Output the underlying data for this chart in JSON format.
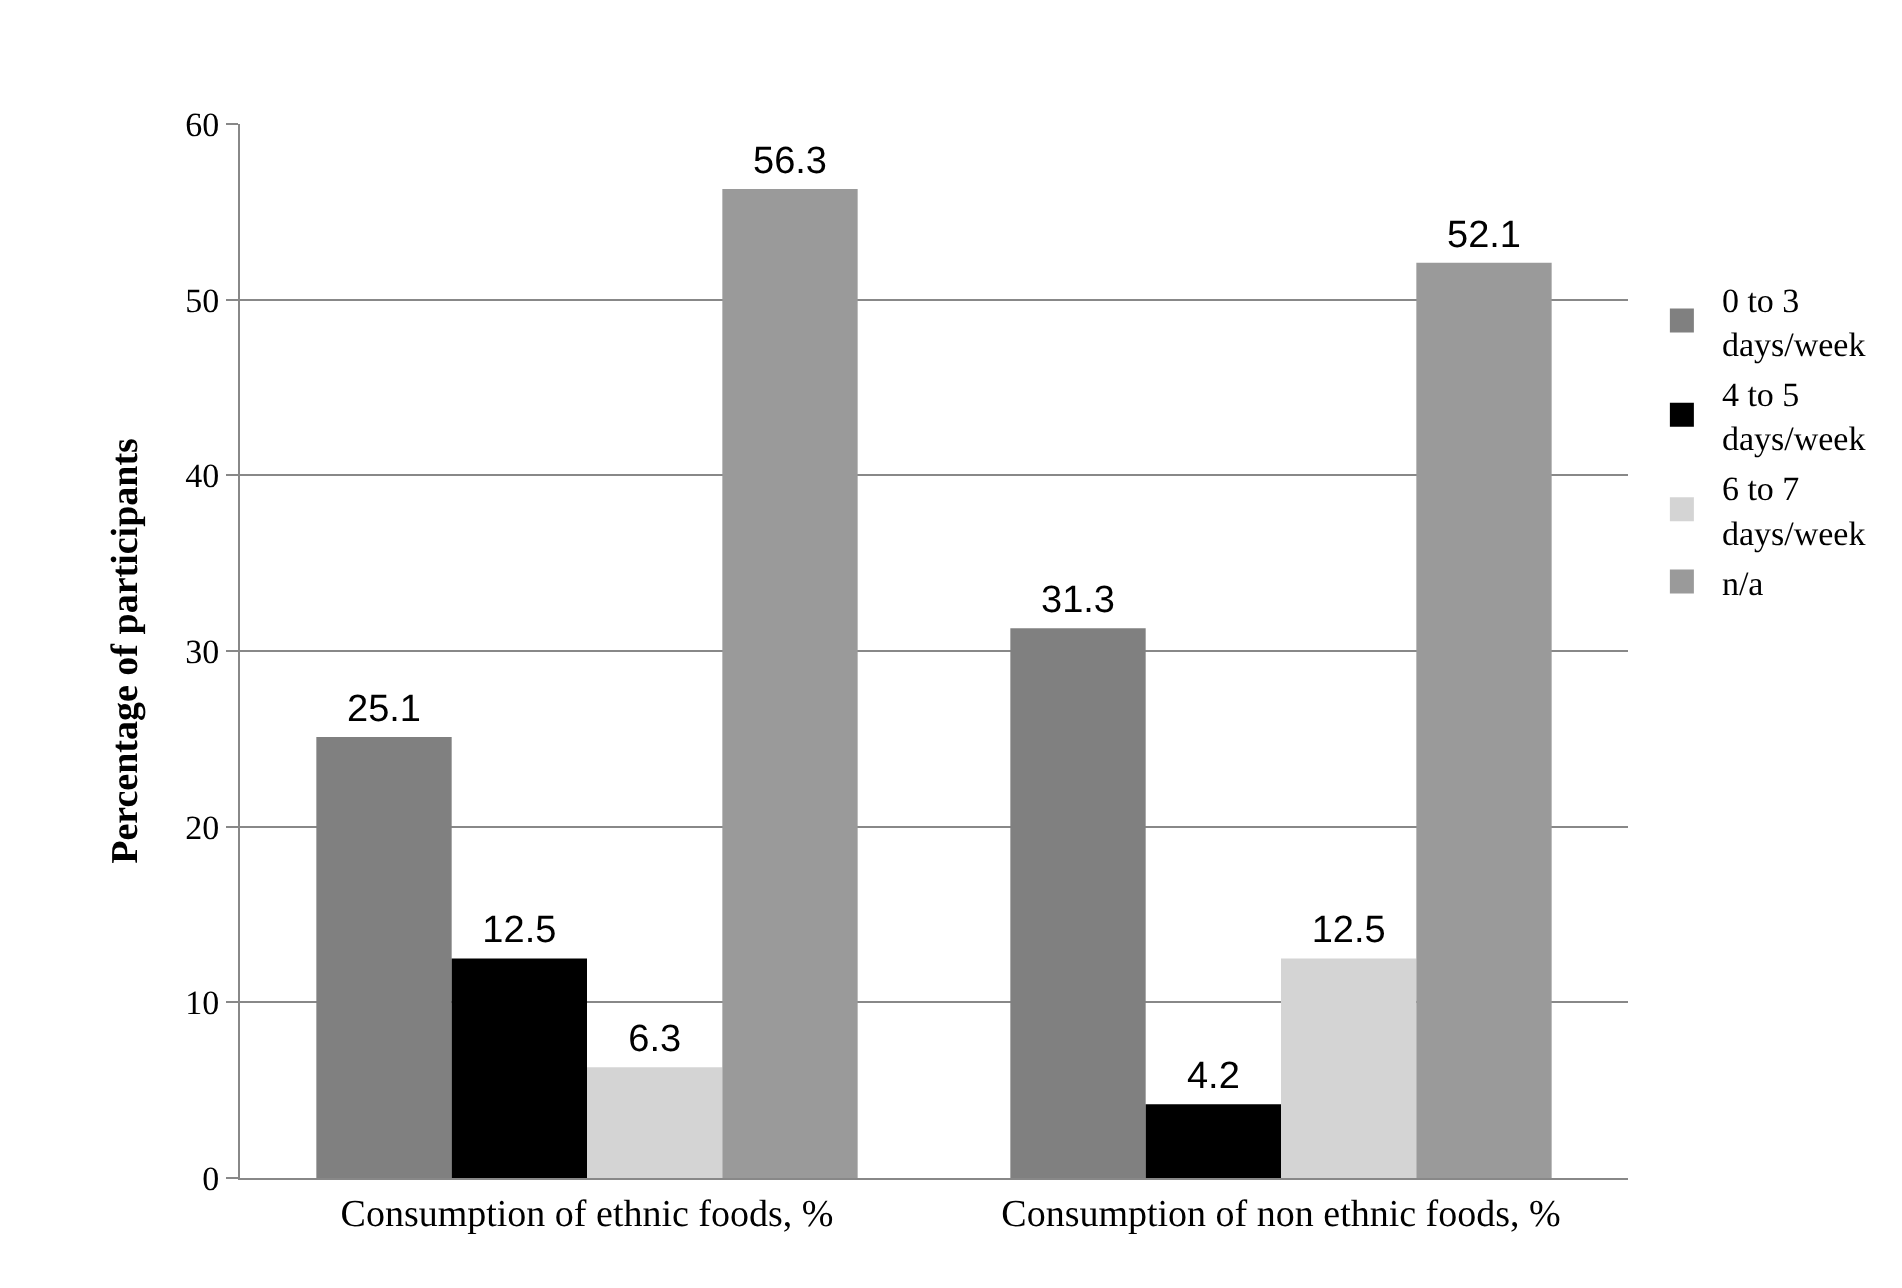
{
  "chart_data": {
    "type": "bar",
    "ylabel": "Percentage of participants",
    "categories": [
      "Consumption of ethnic foods, %",
      "Consumption of non ethnic foods, %"
    ],
    "series": [
      {
        "name": "0 to 3 days/week",
        "color": "#808080",
        "values": [
          25.1,
          31.3
        ]
      },
      {
        "name": "4 to 5 days/week",
        "color": "#000000",
        "values": [
          12.5,
          4.2
        ]
      },
      {
        "name": "6 to 7 days/week",
        "color": "#d4d4d4",
        "values": [
          6.3,
          12.5
        ]
      },
      {
        "name": "n/a",
        "color": "#9a9a9a",
        "values": [
          56.3,
          52.1
        ]
      }
    ],
    "ylim": [
      0,
      60
    ],
    "yticks": [
      0,
      10,
      20,
      30,
      40,
      50,
      60
    ],
    "grid": "y",
    "legend": "right",
    "data_labels": true
  }
}
